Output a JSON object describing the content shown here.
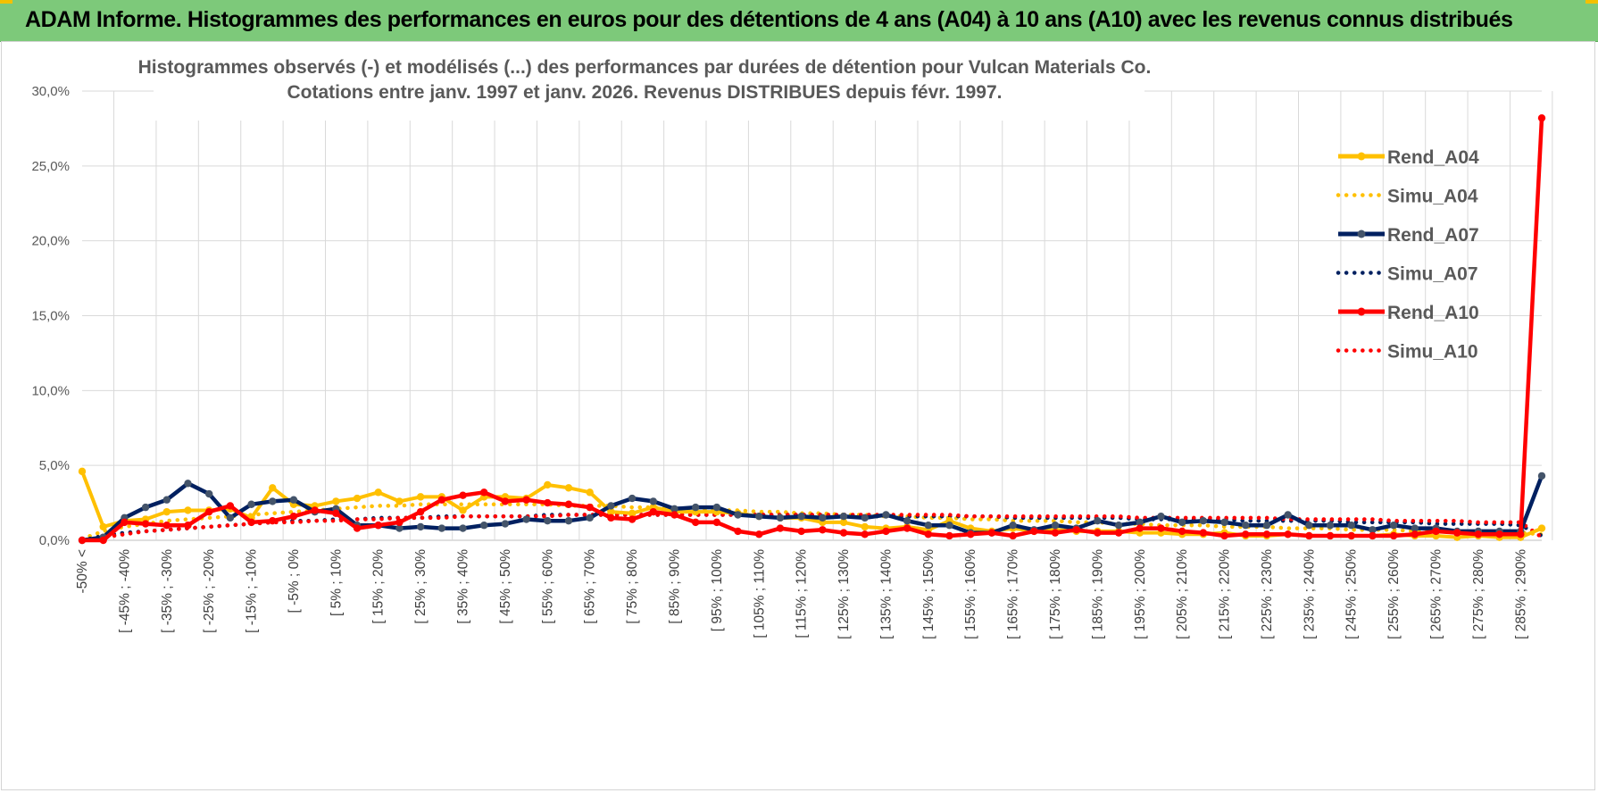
{
  "header": {
    "title": "ADAM Informe. Histogrammes des performances en euros pour des détentions de 4 ans (A04) à 10 ans (A10) avec les revenus connus distribués",
    "background": "#7dc97a"
  },
  "chart_data": {
    "type": "line",
    "title_line1": "Histogrammes observés (-) et modélisés (...) des performances par durées de détention pour Vulcan Materials Co.",
    "title_line2": "Cotations entre janv. 1997 et janv. 2026. Revenus DISTRIBUES depuis févr. 1997.",
    "ylim": [
      0,
      30
    ],
    "y_ticks": [
      "0,0%",
      "5,0%",
      "10,0%",
      "15,0%",
      "20,0%",
      "25,0%",
      "30,0%"
    ],
    "y_unit": "%",
    "grid": true,
    "legend_position": "right",
    "n_bins": 70,
    "x_labels": [
      "-50% <",
      "[ -45% ; -40%",
      "[ -35% ; -30%",
      "[ -25% ; -20%",
      "[ -15% ; -10%",
      "[ -5% ; 0%",
      "[ 5% ; 10%",
      "[ 15% ; 20%",
      "[ 25% ; 30%",
      "[ 35% ; 40%",
      "[ 45% ; 50%",
      "[ 55% ; 60%",
      "[ 65% ; 70%",
      "[ 75% ; 80%",
      "[ 85% ; 90%",
      "[ 95% ; 100%",
      "[ 105% ; 110%",
      "[ 115% ; 120%",
      "[ 125% ; 130%",
      "[ 135% ; 140%",
      "[ 145% ; 150%",
      "[ 155% ; 160%",
      "[ 165% ; 170%",
      "[ 175% ; 180%",
      "[ 185% ; 190%",
      "[ 195% ; 200%",
      "[ 205% ; 210%",
      "[ 215% ; 220%",
      "[ 225% ; 230%",
      "[ 235% ; 240%",
      "[ 245% ; 250%",
      "[ 255% ; 260%",
      "[ 265% ; 270%",
      "[ 275% ; 280%",
      "[ 285% ; 290%"
    ],
    "series": [
      {
        "name": "Rend_A04",
        "color": "#ffc000",
        "style": "solid",
        "values": [
          4.6,
          0.9,
          1.3,
          1.4,
          1.9,
          2.0,
          2.0,
          2.1,
          1.5,
          3.5,
          2.4,
          2.3,
          2.6,
          2.8,
          3.2,
          2.6,
          2.9,
          2.9,
          2.0,
          2.9,
          2.9,
          2.8,
          3.7,
          3.5,
          3.2,
          1.9,
          1.8,
          2.2,
          1.9,
          1.9,
          1.9,
          1.8,
          1.6,
          1.5,
          1.5,
          1.2,
          1.2,
          0.9,
          0.8,
          0.9,
          0.7,
          1.3,
          0.8,
          0.6,
          0.8,
          0.6,
          0.7,
          0.6,
          0.6,
          0.6,
          0.5,
          0.5,
          0.4,
          0.4,
          0.5,
          0.3,
          0.3,
          0.4,
          0.3,
          0.3,
          0.3,
          0.3,
          0.4,
          0.3,
          0.3,
          0.2,
          0.3,
          0.2,
          0.2,
          0.8
        ]
      },
      {
        "name": "Simu_A04",
        "color": "#ffc000",
        "style": "dotted",
        "values": [
          0.1,
          0.6,
          0.9,
          1.1,
          1.3,
          1.4,
          1.5,
          1.6,
          1.7,
          1.8,
          1.9,
          2.0,
          2.1,
          2.2,
          2.3,
          2.3,
          2.4,
          2.4,
          2.4,
          2.4,
          2.4,
          2.4,
          2.4,
          2.3,
          2.3,
          2.3,
          2.2,
          2.2,
          2.1,
          2.1,
          2.0,
          2.0,
          1.9,
          1.9,
          1.8,
          1.8,
          1.7,
          1.7,
          1.6,
          1.6,
          1.5,
          1.5,
          1.4,
          1.4,
          1.3,
          1.3,
          1.3,
          1.2,
          1.2,
          1.1,
          1.1,
          1.0,
          1.0,
          1.0,
          0.9,
          0.9,
          0.9,
          0.8,
          0.8,
          0.8,
          0.7,
          0.7,
          0.7,
          0.6,
          0.6,
          0.6,
          0.5,
          0.5,
          0.5,
          0.4
        ]
      },
      {
        "name": "Rend_A07",
        "color": "#002060",
        "style": "solid",
        "values": [
          0.0,
          0.2,
          1.5,
          2.2,
          2.7,
          3.8,
          3.1,
          1.5,
          2.4,
          2.6,
          2.7,
          1.9,
          2.1,
          1.0,
          1.0,
          0.8,
          0.9,
          0.8,
          0.8,
          1.0,
          1.1,
          1.4,
          1.3,
          1.3,
          1.5,
          2.3,
          2.8,
          2.6,
          2.1,
          2.2,
          2.2,
          1.7,
          1.6,
          1.5,
          1.6,
          1.5,
          1.6,
          1.5,
          1.7,
          1.3,
          1.0,
          1.0,
          0.5,
          0.5,
          1.0,
          0.7,
          1.0,
          0.8,
          1.3,
          1.0,
          1.2,
          1.6,
          1.2,
          1.3,
          1.2,
          1.0,
          1.0,
          1.7,
          1.0,
          1.0,
          1.0,
          0.7,
          1.0,
          0.8,
          0.8,
          0.6,
          0.6,
          0.6,
          0.6,
          4.3
        ]
      },
      {
        "name": "Simu_A07",
        "color": "#002060",
        "style": "dotted",
        "values": [
          0.0,
          0.3,
          0.5,
          0.6,
          0.7,
          0.8,
          0.9,
          1.0,
          1.1,
          1.2,
          1.3,
          1.3,
          1.4,
          1.4,
          1.5,
          1.5,
          1.5,
          1.6,
          1.6,
          1.6,
          1.6,
          1.6,
          1.7,
          1.7,
          1.7,
          1.7,
          1.7,
          1.7,
          1.7,
          1.7,
          1.7,
          1.7,
          1.7,
          1.7,
          1.7,
          1.7,
          1.6,
          1.6,
          1.6,
          1.6,
          1.6,
          1.6,
          1.6,
          1.6,
          1.5,
          1.5,
          1.5,
          1.5,
          1.5,
          1.5,
          1.4,
          1.4,
          1.4,
          1.4,
          1.4,
          1.3,
          1.3,
          1.3,
          1.3,
          1.3,
          1.2,
          1.2,
          1.2,
          1.2,
          1.1,
          1.1,
          1.1,
          1.1,
          1.0,
          0.3
        ]
      },
      {
        "name": "Rend_A10",
        "color": "#ff0000",
        "style": "solid",
        "values": [
          0.0,
          0.0,
          1.2,
          1.1,
          1.0,
          1.0,
          1.9,
          2.3,
          1.2,
          1.3,
          1.6,
          2.0,
          1.8,
          0.8,
          1.0,
          1.2,
          1.9,
          2.7,
          3.0,
          3.2,
          2.6,
          2.7,
          2.5,
          2.4,
          2.2,
          1.5,
          1.4,
          1.9,
          1.7,
          1.2,
          1.2,
          0.6,
          0.4,
          0.8,
          0.6,
          0.7,
          0.5,
          0.4,
          0.6,
          0.8,
          0.4,
          0.3,
          0.4,
          0.5,
          0.3,
          0.6,
          0.5,
          0.7,
          0.5,
          0.5,
          0.8,
          0.8,
          0.6,
          0.5,
          0.3,
          0.4,
          0.4,
          0.4,
          0.3,
          0.3,
          0.3,
          0.3,
          0.3,
          0.4,
          0.6,
          0.5,
          0.4,
          0.4,
          0.4,
          28.2
        ]
      },
      {
        "name": "Simu_A10",
        "color": "#ff0000",
        "style": "dotted",
        "values": [
          0.0,
          0.2,
          0.4,
          0.6,
          0.7,
          0.8,
          0.9,
          1.0,
          1.1,
          1.2,
          1.2,
          1.3,
          1.3,
          1.4,
          1.4,
          1.5,
          1.5,
          1.5,
          1.6,
          1.6,
          1.6,
          1.6,
          1.6,
          1.7,
          1.7,
          1.7,
          1.7,
          1.7,
          1.7,
          1.7,
          1.7,
          1.7,
          1.7,
          1.7,
          1.7,
          1.7,
          1.7,
          1.7,
          1.7,
          1.7,
          1.7,
          1.7,
          1.6,
          1.6,
          1.6,
          1.6,
          1.6,
          1.6,
          1.6,
          1.6,
          1.5,
          1.5,
          1.5,
          1.5,
          1.5,
          1.5,
          1.5,
          1.4,
          1.4,
          1.4,
          1.4,
          1.4,
          1.3,
          1.3,
          1.3,
          1.3,
          1.2,
          1.2,
          1.2,
          0.2
        ]
      }
    ]
  }
}
